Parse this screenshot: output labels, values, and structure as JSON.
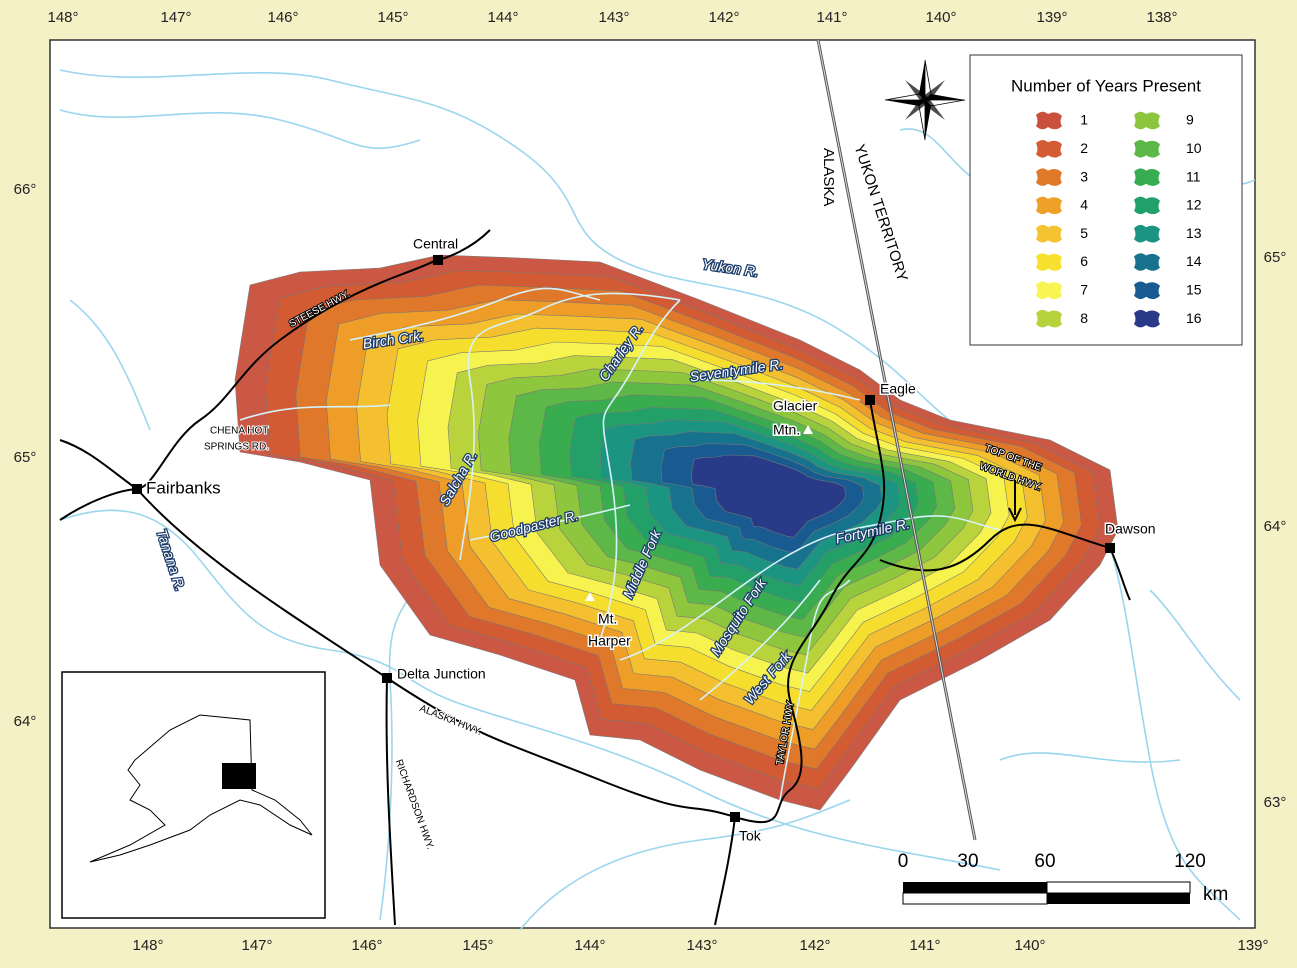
{
  "graticule": {
    "top": [
      "148°",
      "147°",
      "146°",
      "145°",
      "144°",
      "143°",
      "142°",
      "141°",
      "140°",
      "139°",
      "138°"
    ],
    "bottom": [
      "148°",
      "147°",
      "146°",
      "145°",
      "144°",
      "143°",
      "142°",
      "141°",
      "140°",
      "139°"
    ],
    "left": [
      "66°",
      "65°",
      "64°"
    ],
    "right": [
      "65°",
      "64°",
      "63°"
    ]
  },
  "places": [
    "Central",
    "Eagle",
    "Glacier",
    "Mtn.",
    "Fairbanks",
    "Dawson",
    "Delta Junction",
    "Tok",
    "Mt.",
    "Harper"
  ],
  "rivers": [
    "Yukon R.",
    "Birch Crk.",
    "Charley R.",
    "Seventymile R.",
    "Salcha R.",
    "Goodpaster R.",
    "Middle Fork",
    "Fortymile R.",
    "Mosquito Fork",
    "West Fork",
    "Tanana R."
  ],
  "roads": [
    "STEESE HWY.",
    "CHENA HOT",
    "SPRINGS RD.",
    "ALASKA HWY.",
    "RICHARDSON HWY.",
    "TAYLOR HWY",
    "TOP OF THE",
    "WORLD HWY."
  ],
  "borders": [
    "ALASKA",
    "YUKON TERRITORY"
  ],
  "legend": {
    "title": "Number of Years Present",
    "items": [
      {
        "label": "1",
        "color": "#c8503c"
      },
      {
        "label": "2",
        "color": "#d45c34"
      },
      {
        "label": "3",
        "color": "#e07a2a"
      },
      {
        "label": "4",
        "color": "#eea028"
      },
      {
        "label": "5",
        "color": "#f5c230"
      },
      {
        "label": "6",
        "color": "#f7e02e"
      },
      {
        "label": "7",
        "color": "#f8f550"
      },
      {
        "label": "8",
        "color": "#b6d23c"
      },
      {
        "label": "9",
        "color": "#8cc63f"
      },
      {
        "label": "10",
        "color": "#5cb848"
      },
      {
        "label": "11",
        "color": "#38ac50"
      },
      {
        "label": "12",
        "color": "#22a06a"
      },
      {
        "label": "13",
        "color": "#1c9484"
      },
      {
        "label": "14",
        "color": "#17728e"
      },
      {
        "label": "15",
        "color": "#1a5a92"
      },
      {
        "label": "16",
        "color": "#2a3a88"
      }
    ]
  },
  "scale_bar": {
    "labels": [
      "0",
      "30",
      "60",
      "120"
    ],
    "unit": "km"
  }
}
